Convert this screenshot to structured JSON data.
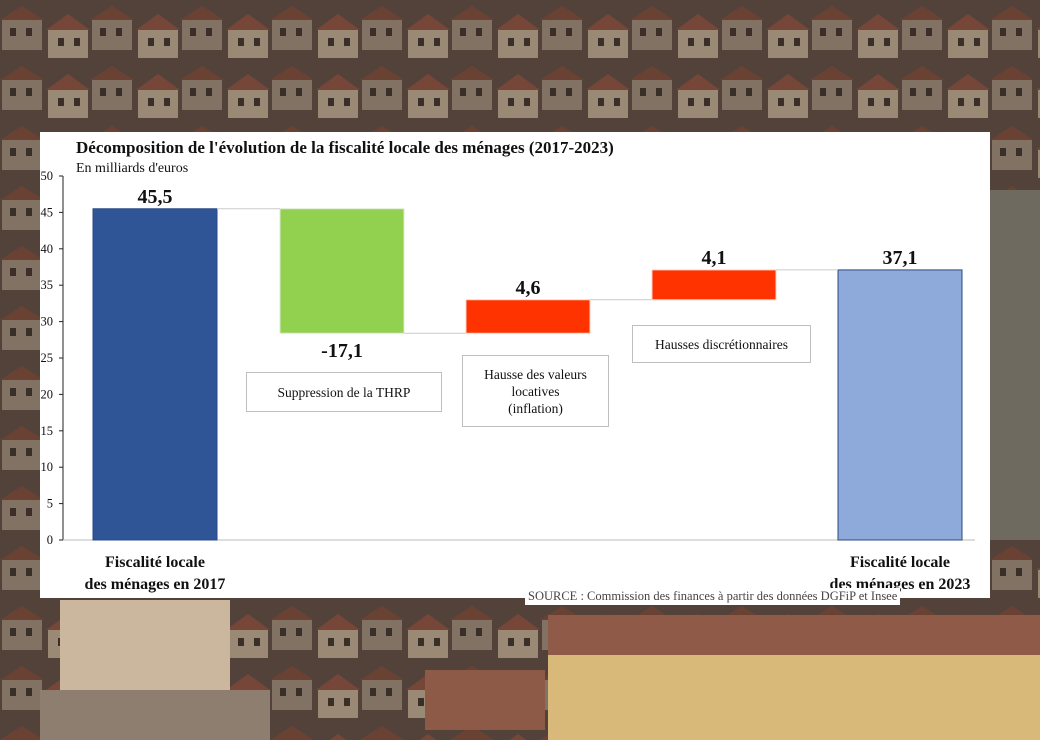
{
  "chart_data": {
    "type": "waterfall",
    "title": "Décomposition de l'évolution de la fiscalité locale des ménages (2017-2023)",
    "unit_label": "En milliards d'euros",
    "ylim": [
      0,
      50
    ],
    "yticks": [
      0,
      5,
      10,
      15,
      20,
      25,
      30,
      35,
      40,
      45,
      50
    ],
    "grid": false,
    "steps": [
      {
        "category": "Fiscalité locale\ndes ménages en 2017",
        "kind": "total",
        "value": 45.5,
        "value_label": "45,5",
        "color": "#2f5597"
      },
      {
        "category": "Suppression de la THRP",
        "kind": "delta",
        "value": -17.1,
        "value_label": "-17,1",
        "color": "#92d050"
      },
      {
        "category": "Hausse des valeurs\nlocatives\n(inflation)",
        "kind": "delta",
        "value": 4.6,
        "value_label": "4,6",
        "color": "#ff3300"
      },
      {
        "category": "Hausses discrétionnaires",
        "kind": "delta",
        "value": 4.1,
        "value_label": "4,1",
        "color": "#ff3300"
      },
      {
        "category": "Fiscalité locale\ndes ménages en 2023",
        "kind": "total",
        "value": 37.1,
        "value_label": "37,1",
        "color": "#8eaadb"
      }
    ],
    "source": "SOURCE : Commission des finances à partir des données DGFiP et Insee"
  }
}
